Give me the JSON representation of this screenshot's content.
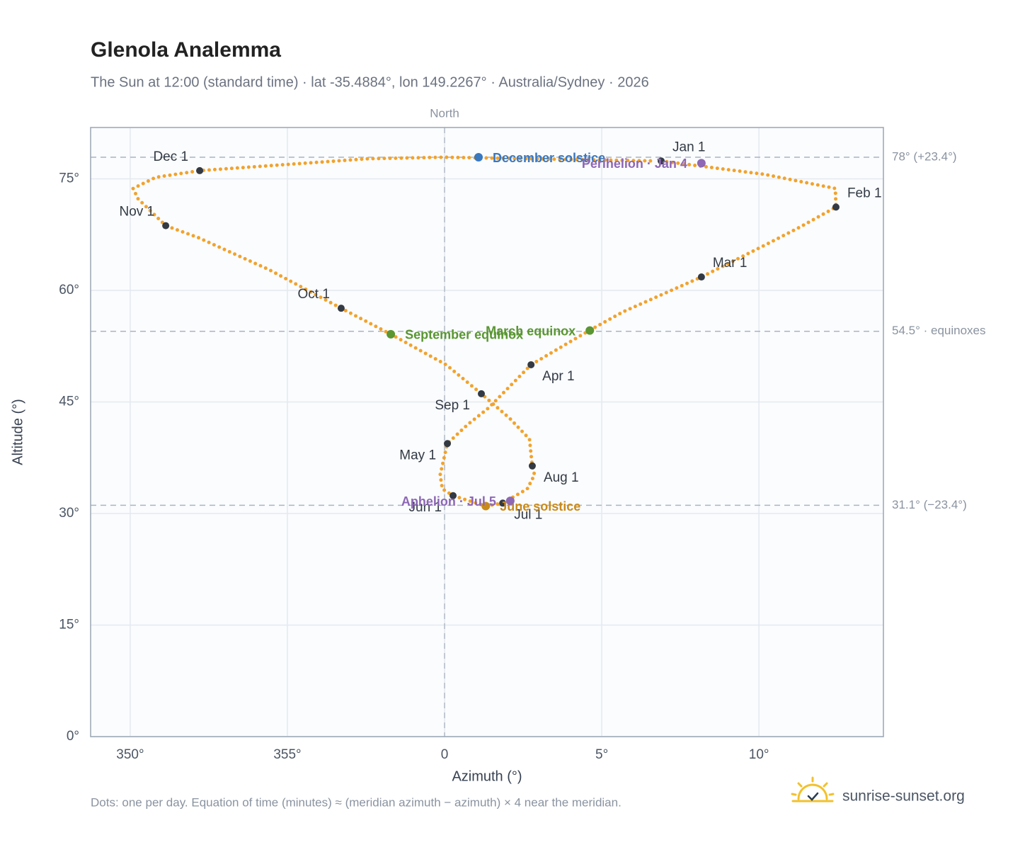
{
  "chart_data": {
    "type": "analemma",
    "title": "Glenola Analemma",
    "subtitle": "The Sun at 12:00 (standard time) · lat -35.4884°, lon 149.2267° · Australia/Sydney · 2026",
    "x_label": "Azimuth (°)",
    "y_label": "Altitude (°)",
    "note": "Dots: one per day. Equation of time (minutes) ≈ (meridian azimuth − azimuth) × 4 near the meridian.",
    "brand": "sunrise-sunset.org",
    "north_label": "North",
    "north_azimuth": 0,
    "color": "#f2a22c",
    "xlim": [
      348.74,
      13.96
    ],
    "ylim": [
      0,
      81.9
    ],
    "xticks": [
      {
        "value": 350,
        "label": "350°"
      },
      {
        "value": 355,
        "label": "355°"
      },
      0,
      {
        "value": 5,
        "label": "5°"
      },
      {
        "value": 10,
        "label": "10°"
      }
    ],
    "yticks": [
      {
        "value": 0,
        "label": "0°"
      },
      {
        "value": 15,
        "label": "15°"
      },
      {
        "value": 30,
        "label": "30°"
      },
      {
        "value": 45,
        "label": "45°"
      },
      {
        "value": 60,
        "label": "60°"
      },
      {
        "value": 75,
        "label": "75°"
      }
    ],
    "grid": true,
    "x": [
      6.89,
      10.18,
      12.43,
      12.45,
      11.3,
      10.2,
      8.17,
      5.67,
      4.6,
      2.75,
      1.4,
      0.72,
      0.09,
      359.86,
      359.93,
      0.27,
      1.31,
      1.85,
      2.63,
      2.86,
      2.79,
      2.7,
      2.07,
      1.17,
      0.05,
      358.29,
      356.71,
      354.41,
      352.16,
      351.13,
      350.25,
      350.09,
      350.81,
      352.21,
      357.57,
      0,
      6.7
    ],
    "values": [
      77.4,
      75.6,
      73.7,
      71.2,
      68.5,
      66.1,
      61.8,
      57.1,
      54.6,
      50.0,
      44.2,
      41.9,
      39.4,
      35.2,
      33.3,
      32.4,
      31.0,
      31.4,
      33.3,
      35.2,
      36.4,
      40.0,
      42.8,
      46.1,
      50.0,
      54.1,
      57.6,
      62.8,
      67.1,
      68.7,
      72.3,
      73.7,
      75.2,
      76.1,
      77.7,
      77.9,
      77.4
    ],
    "reference_lines": [
      {
        "value": 77.9,
        "label": "78° (+23.4°)"
      },
      {
        "value": 54.5,
        "label": "54.5° · equinoxes"
      },
      {
        "value": 31.1,
        "label": "31.1° (−23.4°)"
      }
    ],
    "month_markers": [
      {
        "label": "Jan 1",
        "x": 6.89,
        "y": 77.4
      },
      {
        "label": "Feb 1",
        "x": 12.45,
        "y": 71.2
      },
      {
        "label": "Mar 1",
        "x": 8.17,
        "y": 61.8
      },
      {
        "label": "Apr 1",
        "x": 2.75,
        "y": 50.0
      },
      {
        "label": "May 1",
        "x": 0.09,
        "y": 39.4
      },
      {
        "label": "Jun 1",
        "x": 0.27,
        "y": 32.4
      },
      {
        "label": "Jul 1",
        "x": 1.85,
        "y": 31.4
      },
      {
        "label": "Aug 1",
        "x": 2.79,
        "y": 36.4
      },
      {
        "label": "Sep 1",
        "x": 1.17,
        "y": 46.1
      },
      {
        "label": "Oct 1",
        "x": 356.71,
        "y": 57.6
      },
      {
        "label": "Nov 1",
        "x": 351.13,
        "y": 68.7
      },
      {
        "label": "Dec 1",
        "x": 352.21,
        "y": 76.1
      }
    ],
    "events": [
      {
        "label": "December solstice",
        "x": 1.08,
        "y": 77.9,
        "color": "#3a78c0"
      },
      {
        "label": "Perihelion · Jan 4",
        "x": 8.17,
        "y": 77.1,
        "color": "#8e67b5"
      },
      {
        "label": "March equinox",
        "x": 4.62,
        "y": 54.6,
        "color": "#5a9632"
      },
      {
        "label": "September equinox",
        "x": 358.29,
        "y": 54.1,
        "color": "#5a9632"
      },
      {
        "label": "June solstice",
        "x": 1.31,
        "y": 31.0,
        "color": "#c98a1c"
      },
      {
        "label": "Aphelion · Jul 5",
        "x": 2.09,
        "y": 31.7,
        "color": "#8e67b5"
      }
    ]
  }
}
